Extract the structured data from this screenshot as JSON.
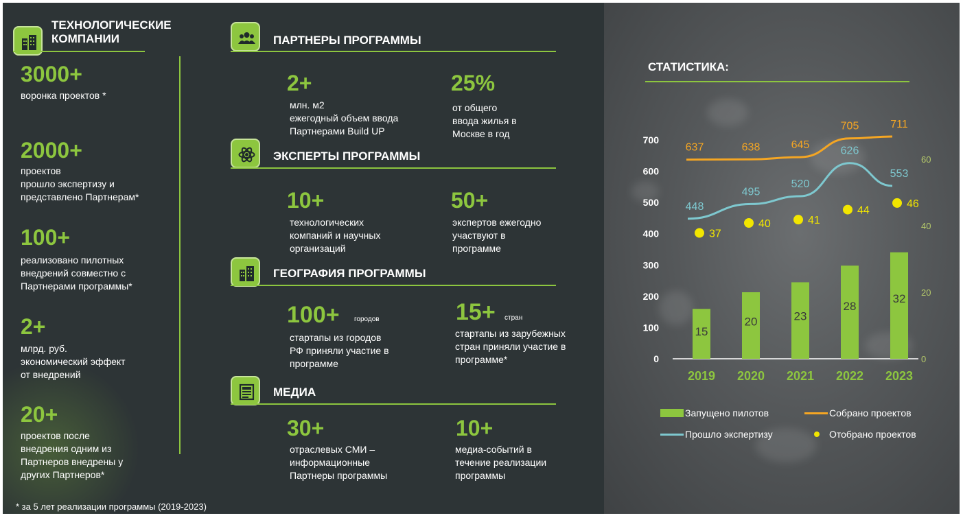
{
  "tech": {
    "title_line1": "ТЕХНОЛОГИЧЕСКИЕ",
    "title_line2": "КОМПАНИИ",
    "stats": [
      {
        "value": "3000+",
        "desc": "воронка проектов *"
      },
      {
        "value": "2000+",
        "desc": "проектов\nпрошло экспертизу и\nпредставлено Партнерам*"
      },
      {
        "value": "100+",
        "desc": "реализовано пилотных\nвнедрений совместно с\nПартнерами программы*"
      },
      {
        "value": "2+",
        "desc": "млрд. руб.\nэкономический эффект\nот внедрений"
      },
      {
        "value": "20+",
        "desc": "проектов после\nвнедрения одним из\nПартнеров внедрены у\nдругих Партнеров*"
      }
    ]
  },
  "footnote": "* за 5 лет реализации программы (2019-2023)",
  "partners": {
    "title": "ПАРТНЕРЫ ПРОГРАММЫ",
    "items": [
      {
        "value": "2+",
        "desc": "млн. м2\nежегодный объем ввода\nПартнерами Build UP"
      },
      {
        "value": "25%",
        "desc": "от общего\nввода жилья в\nМоскве в год"
      }
    ]
  },
  "experts": {
    "title": "ЭКСПЕРТЫ ПРОГРАММЫ",
    "items": [
      {
        "value": "10+",
        "desc": "технологических\nкомпаний и научных\nорганизаций"
      },
      {
        "value": "50+",
        "desc": "экспертов ежегодно\nучаствуют в\nпрограмме"
      }
    ]
  },
  "geo": {
    "title": "ГЕОГРАФИЯ ПРОГРАММЫ",
    "items": [
      {
        "value": "100+",
        "suffix": "городов",
        "desc": "стартапы из городов\nРФ приняли участие в\nпрограмме"
      },
      {
        "value": "15+",
        "suffix": "стран",
        "desc": "стартапы из зарубежных\nстран приняли участие в\nпрограмме*"
      }
    ]
  },
  "media": {
    "title": "МЕДИА",
    "items": [
      {
        "value": "30+",
        "desc": "отраслевых СМИ –\nинформационные\nПартнеры программы"
      },
      {
        "value": "10+",
        "desc": "медиа-событий в\nтечение реализации\nпрограммы"
      }
    ]
  },
  "colors": {
    "accent": "#8dc63f",
    "orange": "#f5a623",
    "teal": "#7ec8cf",
    "yellow": "#f2e600",
    "axis_secondary": "#b5c96a",
    "background": "#2d3436"
  },
  "chart_data": {
    "type": "bar",
    "title": "СТАТИСТИКА:",
    "categories": [
      "2019",
      "2020",
      "2021",
      "2022",
      "2023"
    ],
    "left_axis": {
      "ticks": [
        0,
        100,
        200,
        300,
        400,
        500,
        600,
        700
      ],
      "range": [
        0,
        700
      ]
    },
    "right_axis": {
      "ticks": [
        0,
        20,
        40,
        60
      ],
      "range": [
        0,
        60
      ]
    },
    "series": [
      {
        "name": "Запущено пилотов",
        "type": "bar",
        "axis": "right",
        "values": [
          15,
          20,
          23,
          28,
          32
        ],
        "color": "#8dc63f"
      },
      {
        "name": "Собрано проектов",
        "type": "line",
        "axis": "left",
        "values": [
          637,
          638,
          645,
          705,
          711
        ],
        "color": "#f5a623"
      },
      {
        "name": "Прошло экспертизу",
        "type": "line",
        "axis": "left",
        "values": [
          448,
          495,
          520,
          626,
          553
        ],
        "color": "#7ec8cf"
      },
      {
        "name": "Отобрано проектов",
        "type": "scatter",
        "axis": "right",
        "values": [
          37,
          40,
          41,
          44,
          46
        ],
        "color": "#f2e600"
      }
    ],
    "legend": {
      "position": "bottom",
      "entries": [
        "Запущено пилотов",
        "Собрано проектов",
        "Прошло экспертизу",
        "Отобрано проектов"
      ]
    }
  }
}
